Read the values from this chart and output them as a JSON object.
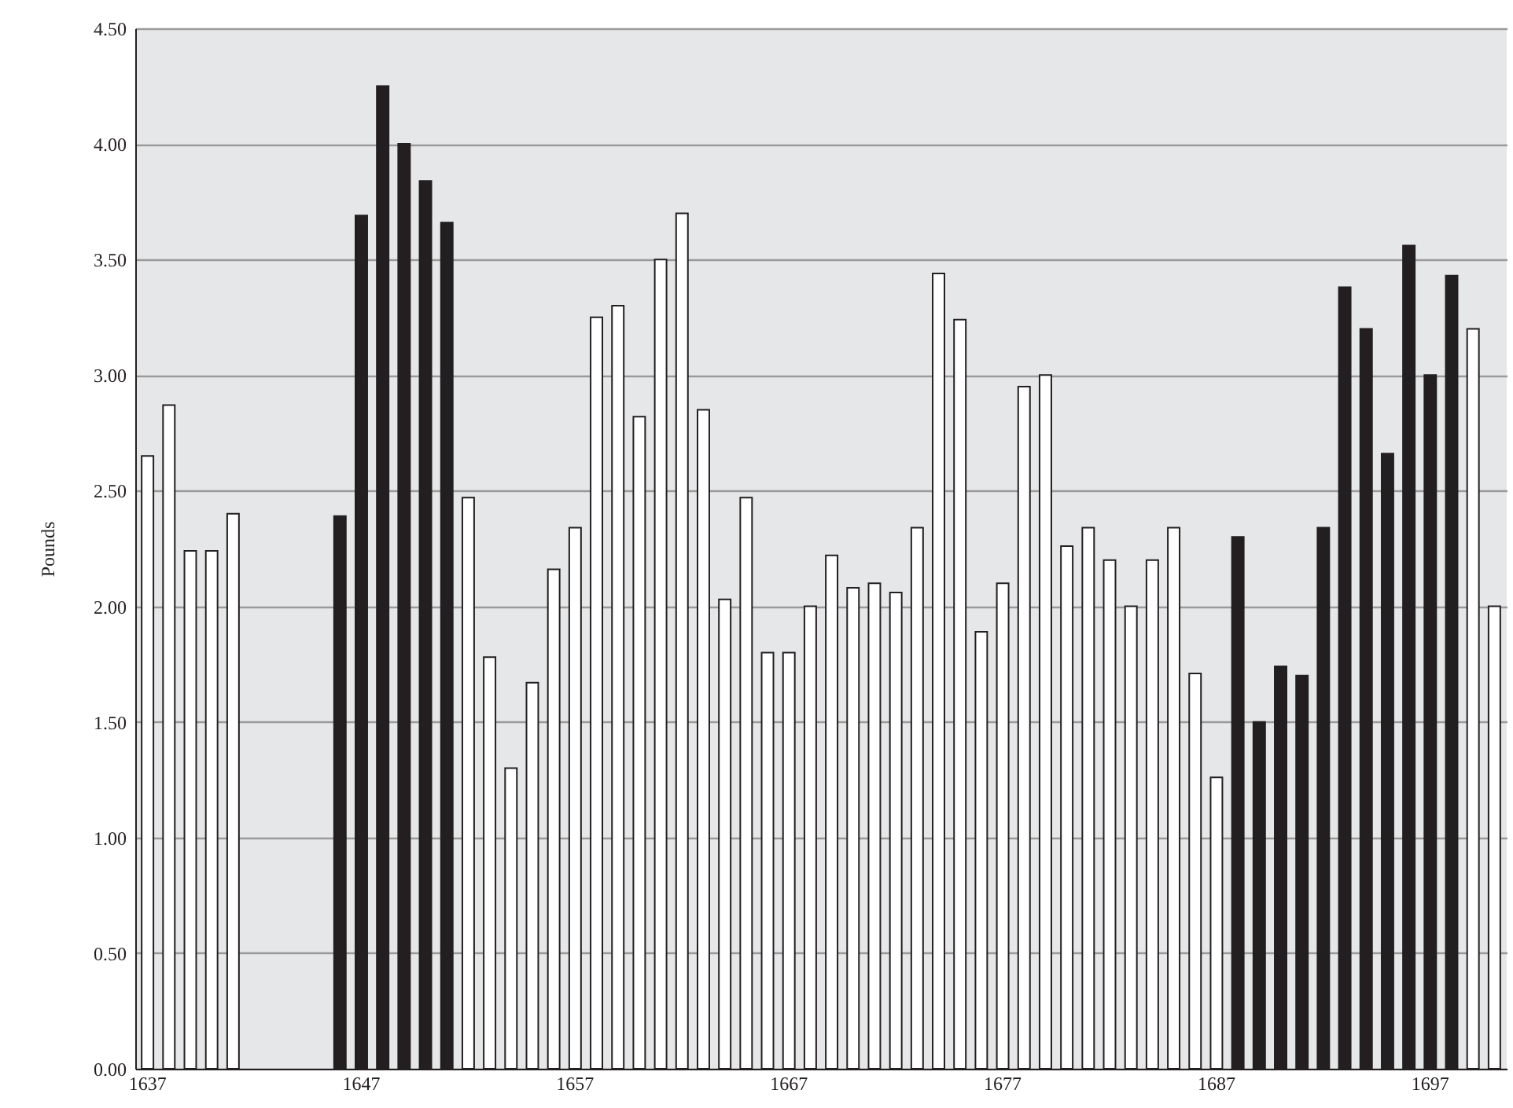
{
  "chart_data": {
    "type": "bar",
    "ylabel": "Pounds",
    "categories": [
      "1637",
      null,
      null,
      null,
      null,
      null,
      null,
      null,
      null,
      null,
      "1647",
      null,
      null,
      null,
      null,
      null,
      null,
      null,
      null,
      null,
      "1657",
      null,
      null,
      null,
      null,
      null,
      null,
      null,
      null,
      null,
      "1667",
      null,
      null,
      null,
      null,
      null,
      null,
      null,
      null,
      null,
      "1677",
      null,
      null,
      null,
      null,
      null,
      null,
      null,
      null,
      null,
      "1687",
      null,
      null,
      null,
      null,
      null,
      null,
      null,
      null,
      null,
      "1697",
      null,
      null,
      null
    ],
    "values": [
      2.65,
      2.87,
      2.24,
      2.24,
      2.4,
      null,
      null,
      null,
      null,
      2.39,
      3.69,
      4.25,
      4.0,
      3.84,
      3.66,
      2.47,
      1.78,
      1.3,
      1.67,
      2.16,
      2.34,
      3.25,
      3.3,
      2.82,
      3.5,
      3.7,
      2.85,
      2.03,
      2.47,
      1.8,
      1.8,
      2.0,
      2.22,
      2.08,
      2.1,
      2.06,
      2.34,
      3.44,
      3.24,
      1.89,
      2.1,
      2.95,
      3.0,
      2.26,
      2.34,
      2.2,
      2.0,
      2.2,
      2.34,
      1.71,
      1.26,
      2.3,
      1.5,
      1.74,
      1.7,
      2.34,
      3.38,
      3.2,
      2.66,
      3.56,
      3.0,
      3.43,
      3.2,
      2.0
    ],
    "colors": [
      "#ffffff",
      "#ffffff",
      "#ffffff",
      "#ffffff",
      "#ffffff",
      null,
      null,
      null,
      null,
      "#231f20",
      "#231f20",
      "#231f20",
      "#231f20",
      "#231f20",
      "#231f20",
      "#ffffff",
      "#ffffff",
      "#ffffff",
      "#ffffff",
      "#ffffff",
      "#ffffff",
      "#ffffff",
      "#ffffff",
      "#ffffff",
      "#ffffff",
      "#ffffff",
      "#ffffff",
      "#ffffff",
      "#ffffff",
      "#ffffff",
      "#ffffff",
      "#ffffff",
      "#ffffff",
      "#ffffff",
      "#ffffff",
      "#ffffff",
      "#ffffff",
      "#ffffff",
      "#ffffff",
      "#ffffff",
      "#ffffff",
      "#ffffff",
      "#ffffff",
      "#ffffff",
      "#ffffff",
      "#ffffff",
      "#ffffff",
      "#ffffff",
      "#ffffff",
      "#ffffff",
      "#ffffff",
      "#231f20",
      "#231f20",
      "#231f20",
      "#231f20",
      "#231f20",
      "#231f20",
      "#231f20",
      "#231f20",
      "#231f20",
      "#231f20",
      "#231f20",
      "#ffffff",
      "#ffffff"
    ],
    "ylim": [
      0,
      4.5
    ],
    "yticks": [
      {
        "value": 0,
        "label": "0.00"
      },
      {
        "value": 0.5,
        "label": "0.50"
      },
      {
        "value": 1,
        "label": "1.00"
      },
      {
        "value": 1.5,
        "label": "1.50"
      },
      {
        "value": 2,
        "label": "2.00"
      },
      {
        "value": 2.5,
        "label": "2.50"
      },
      {
        "value": 3,
        "label": "3.00"
      },
      {
        "value": 3.5,
        "label": "3.50"
      },
      {
        "value": 4,
        "label": "4.00"
      },
      {
        "value": 4.5,
        "label": "4.50"
      }
    ],
    "grid": "y"
  }
}
